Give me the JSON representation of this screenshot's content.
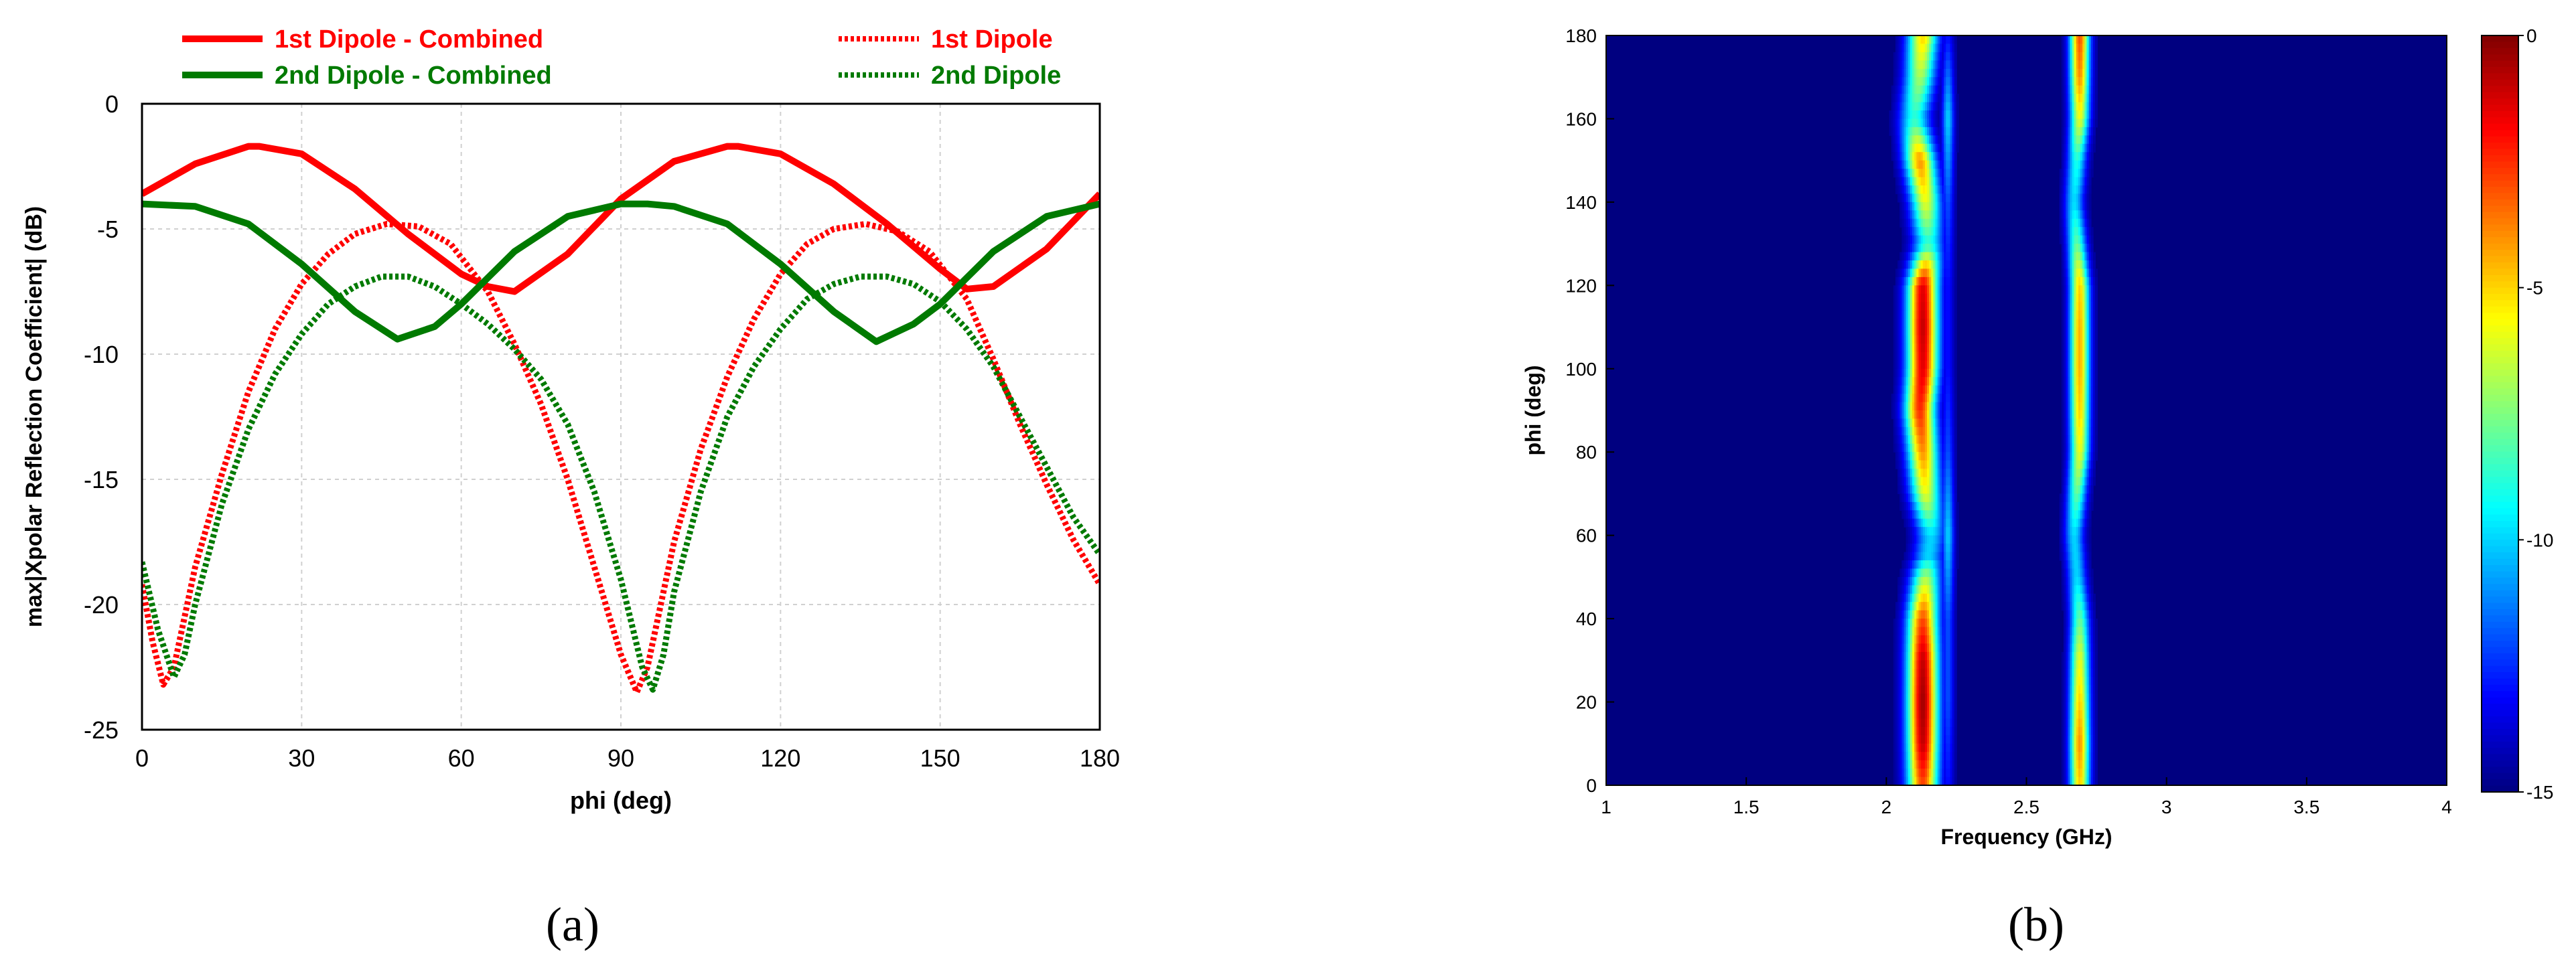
{
  "chart_data": [
    {
      "panel_label": "(a)",
      "type": "line",
      "xlabel": "phi (deg)",
      "ylabel": "max|Xpolar Reflection Coefficient| (dB)",
      "xlim": [
        0,
        180
      ],
      "ylim": [
        -25,
        0
      ],
      "xticks": [
        0,
        30,
        60,
        90,
        120,
        150,
        180
      ],
      "yticks": [
        0,
        -5,
        -10,
        -15,
        -20,
        -25
      ],
      "grid": true,
      "legend_placement": "top, outside plot",
      "series": [
        {
          "name": "1st Dipole - Combined",
          "color": "#ff0000",
          "style": "solid",
          "x": [
            0,
            10,
            20,
            22,
            30,
            40,
            45,
            50,
            60,
            65,
            70,
            80,
            90,
            100,
            110,
            112,
            120,
            130,
            140,
            150,
            155,
            160,
            170,
            180
          ],
          "y": [
            -3.6,
            -2.4,
            -1.7,
            -1.7,
            -2.0,
            -3.4,
            -4.3,
            -5.2,
            -6.8,
            -7.3,
            -7.5,
            -6.0,
            -3.8,
            -2.3,
            -1.7,
            -1.7,
            -2.0,
            -3.2,
            -4.8,
            -6.6,
            -7.4,
            -7.3,
            -5.8,
            -3.6
          ]
        },
        {
          "name": "2nd Dipole - Combined",
          "color": "#007a00",
          "style": "solid",
          "x": [
            0,
            10,
            20,
            30,
            40,
            48,
            55,
            60,
            70,
            80,
            90,
            95,
            100,
            110,
            120,
            130,
            138,
            145,
            150,
            160,
            170,
            180
          ],
          "y": [
            -4.0,
            -4.1,
            -4.8,
            -6.4,
            -8.3,
            -9.4,
            -8.9,
            -8.0,
            -5.9,
            -4.5,
            -4.0,
            -4.0,
            -4.1,
            -4.8,
            -6.4,
            -8.3,
            -9.5,
            -8.8,
            -8.0,
            -5.9,
            -4.5,
            -4.0
          ]
        },
        {
          "name": "1st Dipole",
          "color": "#ff0000",
          "style": "dashed",
          "x": [
            0,
            2,
            4,
            6,
            10,
            15,
            20,
            25,
            30,
            35,
            40,
            46,
            52,
            58,
            65,
            70,
            75,
            80,
            85,
            90,
            93,
            95,
            97,
            100,
            105,
            110,
            115,
            120,
            125,
            130,
            136,
            142,
            148,
            155,
            160,
            165,
            170,
            175,
            180
          ],
          "y": [
            -19.2,
            -21.5,
            -23.2,
            -22.5,
            -18.5,
            -14.8,
            -11.5,
            -9.0,
            -7.2,
            -6.0,
            -5.2,
            -4.8,
            -4.9,
            -5.6,
            -7.5,
            -9.6,
            -12.0,
            -15.0,
            -18.5,
            -22.0,
            -23.5,
            -22.5,
            -20.5,
            -17.5,
            -13.8,
            -10.9,
            -8.6,
            -6.8,
            -5.6,
            -5.0,
            -4.8,
            -5.1,
            -5.9,
            -7.8,
            -10.2,
            -12.8,
            -15.2,
            -17.4,
            -19.2
          ]
        },
        {
          "name": "2nd Dipole",
          "color": "#007a00",
          "style": "dashed",
          "x": [
            0,
            3,
            6,
            8,
            10,
            15,
            20,
            25,
            30,
            35,
            40,
            45,
            50,
            55,
            60,
            65,
            70,
            75,
            80,
            85,
            90,
            94,
            96,
            98,
            100,
            105,
            110,
            115,
            120,
            125,
            130,
            135,
            140,
            145,
            150,
            155,
            160,
            165,
            170,
            175,
            180
          ],
          "y": [
            -18.3,
            -21.0,
            -22.9,
            -22.0,
            -20.0,
            -16.0,
            -13.0,
            -10.8,
            -9.2,
            -8.0,
            -7.3,
            -6.9,
            -6.9,
            -7.3,
            -8.0,
            -8.8,
            -9.8,
            -11.0,
            -12.8,
            -15.5,
            -19.0,
            -22.5,
            -23.4,
            -22.0,
            -19.5,
            -15.5,
            -12.5,
            -10.5,
            -9.0,
            -7.8,
            -7.2,
            -6.9,
            -6.9,
            -7.2,
            -7.9,
            -9.0,
            -10.5,
            -12.5,
            -14.5,
            -16.5,
            -18.0
          ]
        }
      ]
    },
    {
      "panel_label": "(b)",
      "type": "heatmap",
      "xlabel": "Frequency (GHz)",
      "ylabel": "phi (deg)",
      "xlim": [
        1,
        4
      ],
      "ylim": [
        0,
        180
      ],
      "xticks": [
        "1",
        "1.5",
        "2",
        "2.5",
        "3",
        "3.5",
        "4"
      ],
      "yticks": [
        "0",
        "20",
        "40",
        "60",
        "80",
        "100",
        "120",
        "140",
        "160",
        "180"
      ],
      "colorbar": {
        "range": [
          -15,
          0
        ],
        "ticks": [
          "0",
          "-5",
          "-10",
          "-15"
        ],
        "colormap": "jet"
      },
      "background_value": -15,
      "bands": [
        {
          "center_phi": [
            0,
            10,
            20,
            30,
            40,
            50,
            55,
            60,
            70,
            80,
            90,
            100,
            110,
            120,
            125,
            130,
            140,
            150,
            160,
            170,
            180
          ],
          "center_ghz": [
            2.13,
            2.13,
            2.13,
            2.13,
            2.13,
            2.14,
            2.15,
            2.16,
            2.14,
            2.13,
            2.12,
            2.13,
            2.13,
            2.13,
            2.14,
            2.15,
            2.14,
            2.12,
            2.1,
            2.12,
            2.13
          ],
          "peak_db": [
            -3,
            -1,
            -0.5,
            -1,
            -3,
            -7,
            -10,
            -10,
            -6,
            -4,
            -2.5,
            -1.5,
            -1,
            -1.5,
            -5,
            -9,
            -6,
            -4,
            -9,
            -7,
            -5
          ]
        },
        {
          "center_phi": [
            0,
            20,
            40,
            60,
            80,
            100,
            120,
            140,
            160,
            180
          ],
          "center_ghz": [
            2.22,
            2.22,
            2.22,
            2.22,
            2.22,
            2.22,
            2.22,
            2.22,
            2.22,
            2.22
          ],
          "peak_db": [
            -13,
            -12,
            -12,
            -10,
            -12,
            -13,
            -13,
            -12,
            -10,
            -13
          ]
        },
        {
          "center_phi": [
            0,
            10,
            20,
            30,
            40,
            50,
            60,
            70,
            80,
            90,
            100,
            110,
            120,
            130,
            140,
            150,
            160,
            170,
            180
          ],
          "center_ghz": [
            2.69,
            2.69,
            2.69,
            2.69,
            2.69,
            2.68,
            2.67,
            2.68,
            2.69,
            2.69,
            2.69,
            2.69,
            2.69,
            2.68,
            2.67,
            2.68,
            2.69,
            2.69,
            2.69
          ],
          "peak_db": [
            -5,
            -4,
            -5,
            -6,
            -8,
            -10,
            -10,
            -8,
            -6,
            -5,
            -4.5,
            -4.5,
            -5,
            -8,
            -10,
            -9,
            -6,
            -4,
            -3
          ]
        }
      ]
    }
  ]
}
